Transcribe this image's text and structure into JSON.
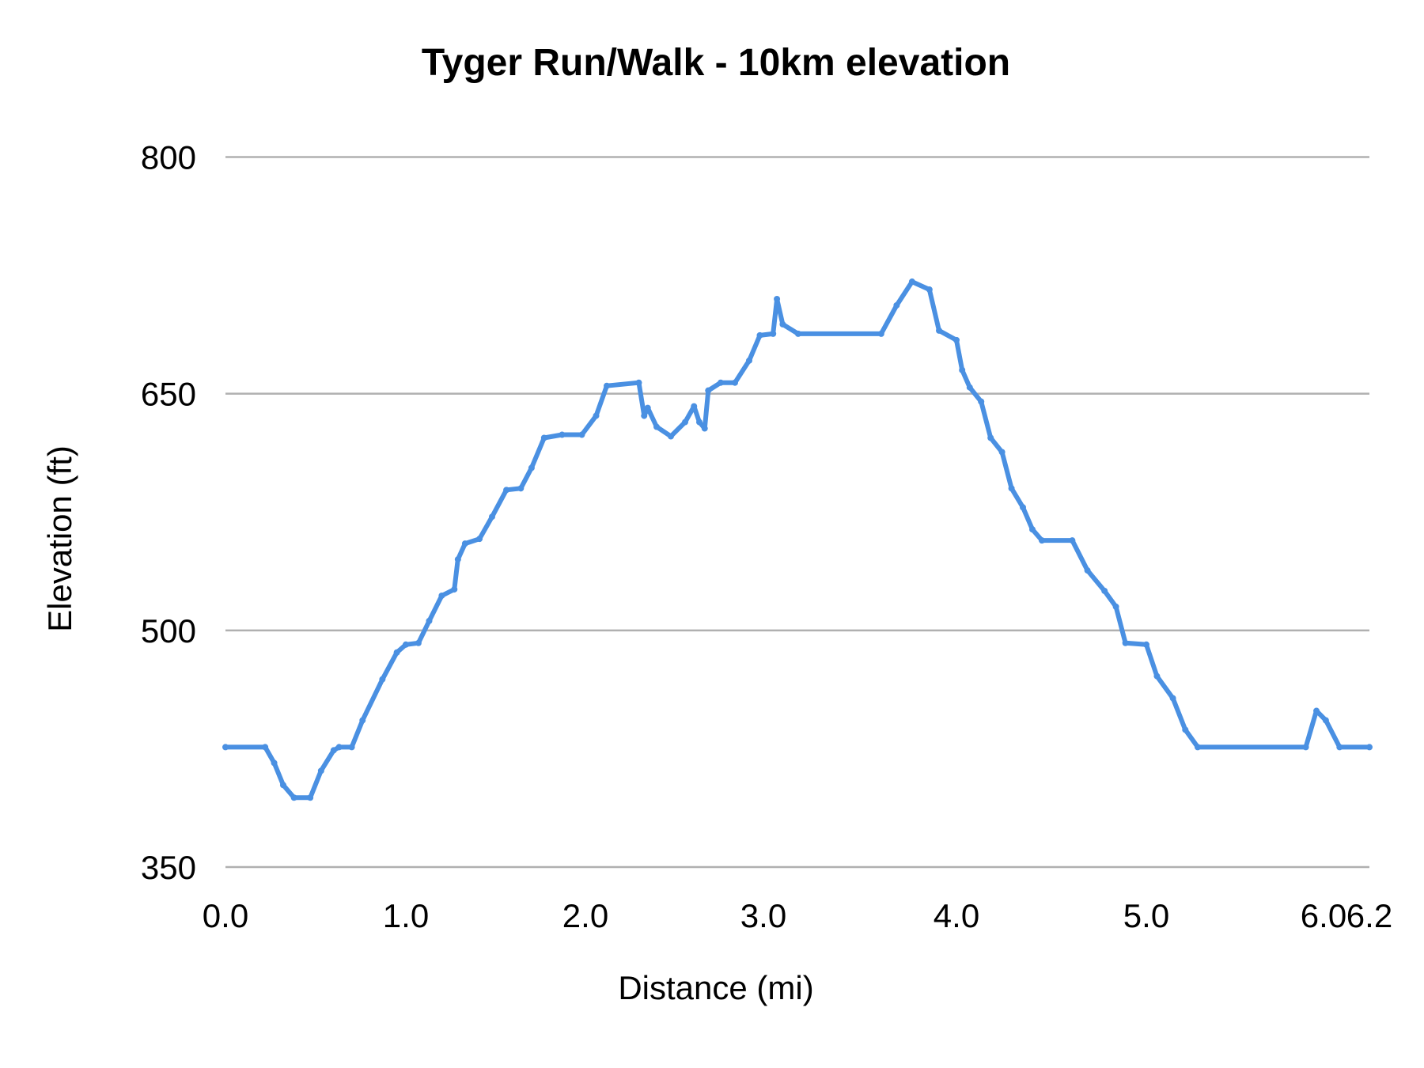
{
  "chart_data": {
    "type": "line",
    "title": "Tyger Run/Walk - 10km elevation",
    "xlabel": "Distance (mi)",
    "ylabel": "Elevation (ft)",
    "xlim": [
      0,
      6.2
    ],
    "ylim": [
      350,
      800
    ],
    "x_ticks": [
      "0.0",
      "1.0",
      "2.0",
      "3.0",
      "4.0",
      "5.0",
      "6.0",
      "6.2"
    ],
    "y_ticks": [
      "350",
      "500",
      "650",
      "800"
    ],
    "grid": true,
    "legend": "none",
    "line_color": "#4a90e2",
    "series": [
      {
        "x": [
          0,
          0.22,
          0.27,
          0.32,
          0.38,
          0.47,
          0.53,
          0.6,
          0.63,
          0.7,
          0.76,
          0.87,
          0.95,
          1.0,
          1.07,
          1.13,
          1.2,
          1.27,
          1.29,
          1.33,
          1.41,
          1.48,
          1.56,
          1.64,
          1.7,
          1.77,
          1.87,
          1.98,
          2.06,
          2.12,
          2.3,
          2.33,
          2.35,
          2.4,
          2.48,
          2.56,
          2.61,
          2.64,
          2.67,
          2.69,
          2.76,
          2.84,
          2.92,
          2.98,
          3.05,
          3.07,
          3.1,
          3.18,
          3.61,
          3.69,
          3.77,
          3.86,
          3.91,
          4.0,
          4.03,
          4.07,
          4.13,
          4.18,
          4.24,
          4.29,
          4.35,
          4.4,
          4.45,
          4.61,
          4.69,
          4.78,
          4.84,
          4.89,
          5.0,
          5.06,
          5.15,
          5.22,
          5.29,
          5.9,
          5.96,
          6.01,
          6.07,
          6.2
        ],
        "y": [
          426,
          426,
          416,
          402,
          394,
          394,
          411,
          424,
          426,
          426,
          443,
          469,
          486,
          491,
          492,
          506,
          522,
          526,
          545,
          555,
          558,
          572,
          589,
          590,
          603,
          622,
          624,
          624,
          636,
          655,
          657,
          636,
          641,
          629,
          623,
          632,
          642,
          632,
          628,
          652,
          657,
          657,
          671,
          687,
          688,
          710,
          694,
          688,
          688,
          706,
          721,
          716,
          690,
          684,
          665,
          654,
          645,
          622,
          613,
          590,
          578,
          564,
          557,
          557,
          538,
          525,
          515,
          492,
          491,
          471,
          457,
          437,
          426,
          426,
          449,
          443,
          426,
          426
        ]
      }
    ]
  }
}
